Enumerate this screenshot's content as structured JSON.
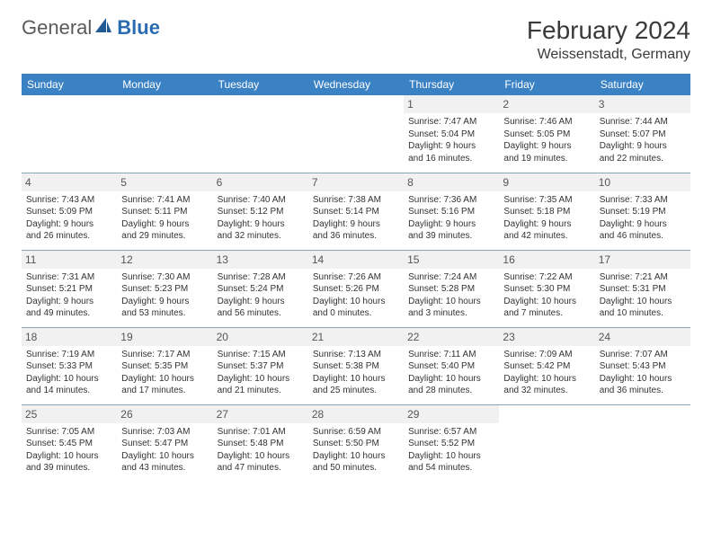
{
  "brand": {
    "name1": "General",
    "name2": "Blue",
    "color_text": "#5a5a5a",
    "color_blue": "#2b6cb0",
    "sail_color": "#1f5a94"
  },
  "title": "February 2024",
  "location": "Weissenstadt, Germany",
  "colors": {
    "header_bg": "#3b82c4",
    "header_text": "#ffffff",
    "daynum_bg": "#f1f1f1",
    "border": "#8aa4b8"
  },
  "weekdays": [
    "Sunday",
    "Monday",
    "Tuesday",
    "Wednesday",
    "Thursday",
    "Friday",
    "Saturday"
  ],
  "weeks": [
    [
      null,
      null,
      null,
      null,
      {
        "d": "1",
        "sr": "Sunrise: 7:47 AM",
        "ss": "Sunset: 5:04 PM",
        "dl1": "Daylight: 9 hours",
        "dl2": "and 16 minutes."
      },
      {
        "d": "2",
        "sr": "Sunrise: 7:46 AM",
        "ss": "Sunset: 5:05 PM",
        "dl1": "Daylight: 9 hours",
        "dl2": "and 19 minutes."
      },
      {
        "d": "3",
        "sr": "Sunrise: 7:44 AM",
        "ss": "Sunset: 5:07 PM",
        "dl1": "Daylight: 9 hours",
        "dl2": "and 22 minutes."
      }
    ],
    [
      {
        "d": "4",
        "sr": "Sunrise: 7:43 AM",
        "ss": "Sunset: 5:09 PM",
        "dl1": "Daylight: 9 hours",
        "dl2": "and 26 minutes."
      },
      {
        "d": "5",
        "sr": "Sunrise: 7:41 AM",
        "ss": "Sunset: 5:11 PM",
        "dl1": "Daylight: 9 hours",
        "dl2": "and 29 minutes."
      },
      {
        "d": "6",
        "sr": "Sunrise: 7:40 AM",
        "ss": "Sunset: 5:12 PM",
        "dl1": "Daylight: 9 hours",
        "dl2": "and 32 minutes."
      },
      {
        "d": "7",
        "sr": "Sunrise: 7:38 AM",
        "ss": "Sunset: 5:14 PM",
        "dl1": "Daylight: 9 hours",
        "dl2": "and 36 minutes."
      },
      {
        "d": "8",
        "sr": "Sunrise: 7:36 AM",
        "ss": "Sunset: 5:16 PM",
        "dl1": "Daylight: 9 hours",
        "dl2": "and 39 minutes."
      },
      {
        "d": "9",
        "sr": "Sunrise: 7:35 AM",
        "ss": "Sunset: 5:18 PM",
        "dl1": "Daylight: 9 hours",
        "dl2": "and 42 minutes."
      },
      {
        "d": "10",
        "sr": "Sunrise: 7:33 AM",
        "ss": "Sunset: 5:19 PM",
        "dl1": "Daylight: 9 hours",
        "dl2": "and 46 minutes."
      }
    ],
    [
      {
        "d": "11",
        "sr": "Sunrise: 7:31 AM",
        "ss": "Sunset: 5:21 PM",
        "dl1": "Daylight: 9 hours",
        "dl2": "and 49 minutes."
      },
      {
        "d": "12",
        "sr": "Sunrise: 7:30 AM",
        "ss": "Sunset: 5:23 PM",
        "dl1": "Daylight: 9 hours",
        "dl2": "and 53 minutes."
      },
      {
        "d": "13",
        "sr": "Sunrise: 7:28 AM",
        "ss": "Sunset: 5:24 PM",
        "dl1": "Daylight: 9 hours",
        "dl2": "and 56 minutes."
      },
      {
        "d": "14",
        "sr": "Sunrise: 7:26 AM",
        "ss": "Sunset: 5:26 PM",
        "dl1": "Daylight: 10 hours",
        "dl2": "and 0 minutes."
      },
      {
        "d": "15",
        "sr": "Sunrise: 7:24 AM",
        "ss": "Sunset: 5:28 PM",
        "dl1": "Daylight: 10 hours",
        "dl2": "and 3 minutes."
      },
      {
        "d": "16",
        "sr": "Sunrise: 7:22 AM",
        "ss": "Sunset: 5:30 PM",
        "dl1": "Daylight: 10 hours",
        "dl2": "and 7 minutes."
      },
      {
        "d": "17",
        "sr": "Sunrise: 7:21 AM",
        "ss": "Sunset: 5:31 PM",
        "dl1": "Daylight: 10 hours",
        "dl2": "and 10 minutes."
      }
    ],
    [
      {
        "d": "18",
        "sr": "Sunrise: 7:19 AM",
        "ss": "Sunset: 5:33 PM",
        "dl1": "Daylight: 10 hours",
        "dl2": "and 14 minutes."
      },
      {
        "d": "19",
        "sr": "Sunrise: 7:17 AM",
        "ss": "Sunset: 5:35 PM",
        "dl1": "Daylight: 10 hours",
        "dl2": "and 17 minutes."
      },
      {
        "d": "20",
        "sr": "Sunrise: 7:15 AM",
        "ss": "Sunset: 5:37 PM",
        "dl1": "Daylight: 10 hours",
        "dl2": "and 21 minutes."
      },
      {
        "d": "21",
        "sr": "Sunrise: 7:13 AM",
        "ss": "Sunset: 5:38 PM",
        "dl1": "Daylight: 10 hours",
        "dl2": "and 25 minutes."
      },
      {
        "d": "22",
        "sr": "Sunrise: 7:11 AM",
        "ss": "Sunset: 5:40 PM",
        "dl1": "Daylight: 10 hours",
        "dl2": "and 28 minutes."
      },
      {
        "d": "23",
        "sr": "Sunrise: 7:09 AM",
        "ss": "Sunset: 5:42 PM",
        "dl1": "Daylight: 10 hours",
        "dl2": "and 32 minutes."
      },
      {
        "d": "24",
        "sr": "Sunrise: 7:07 AM",
        "ss": "Sunset: 5:43 PM",
        "dl1": "Daylight: 10 hours",
        "dl2": "and 36 minutes."
      }
    ],
    [
      {
        "d": "25",
        "sr": "Sunrise: 7:05 AM",
        "ss": "Sunset: 5:45 PM",
        "dl1": "Daylight: 10 hours",
        "dl2": "and 39 minutes."
      },
      {
        "d": "26",
        "sr": "Sunrise: 7:03 AM",
        "ss": "Sunset: 5:47 PM",
        "dl1": "Daylight: 10 hours",
        "dl2": "and 43 minutes."
      },
      {
        "d": "27",
        "sr": "Sunrise: 7:01 AM",
        "ss": "Sunset: 5:48 PM",
        "dl1": "Daylight: 10 hours",
        "dl2": "and 47 minutes."
      },
      {
        "d": "28",
        "sr": "Sunrise: 6:59 AM",
        "ss": "Sunset: 5:50 PM",
        "dl1": "Daylight: 10 hours",
        "dl2": "and 50 minutes."
      },
      {
        "d": "29",
        "sr": "Sunrise: 6:57 AM",
        "ss": "Sunset: 5:52 PM",
        "dl1": "Daylight: 10 hours",
        "dl2": "and 54 minutes."
      },
      null,
      null
    ]
  ]
}
